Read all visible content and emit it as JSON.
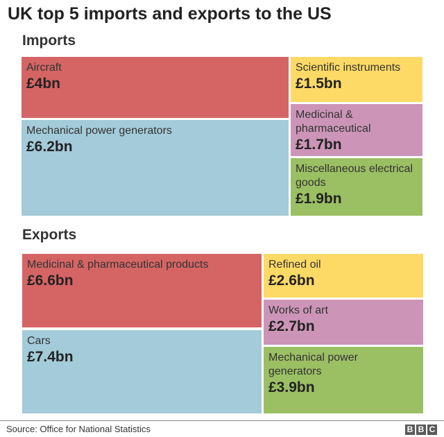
{
  "chart_data": {
    "type": "treemap",
    "title": "UK top 5 imports and exports to the US",
    "unit": "£bn",
    "groups": [
      {
        "name": "Imports",
        "items": [
          {
            "label": "Aircraft",
            "value": 4,
            "display": "£4bn",
            "color": "#d46564"
          },
          {
            "label": "Mechanical power generators",
            "value": 6.2,
            "display": "£6.2bn",
            "color": "#a3cbd9"
          },
          {
            "label": "Scientific instruments",
            "value": 1.5,
            "display": "£1.5bn",
            "color": "#fdd966"
          },
          {
            "label": "Medicinal & pharmaceutical",
            "value": 1.7,
            "display": "£1.7bn",
            "color": "#cc95b8"
          },
          {
            "label": "Miscellaneous electrical goods",
            "value": 1.9,
            "display": "£1.9bn",
            "color": "#9bbf63"
          }
        ]
      },
      {
        "name": "Exports",
        "items": [
          {
            "label": "Medicinal & pharmaceutical products",
            "value": 6.6,
            "display": "£6.6bn",
            "color": "#d46564"
          },
          {
            "label": "Cars",
            "value": 7.4,
            "display": "£7.4bn",
            "color": "#a3cbd9"
          },
          {
            "label": "Refined oil",
            "value": 2.6,
            "display": "£2.6bn",
            "color": "#fdd966"
          },
          {
            "label": "Works of art",
            "value": 2.7,
            "display": "£2.7bn",
            "color": "#cc95b8"
          },
          {
            "label": "Mechanical power generators",
            "value": 3.9,
            "display": "£3.9bn",
            "color": "#9bbf63"
          }
        ]
      }
    ]
  },
  "footer": {
    "source": "Source: Office for National Statistics",
    "logo": [
      "B",
      "B",
      "C"
    ]
  }
}
